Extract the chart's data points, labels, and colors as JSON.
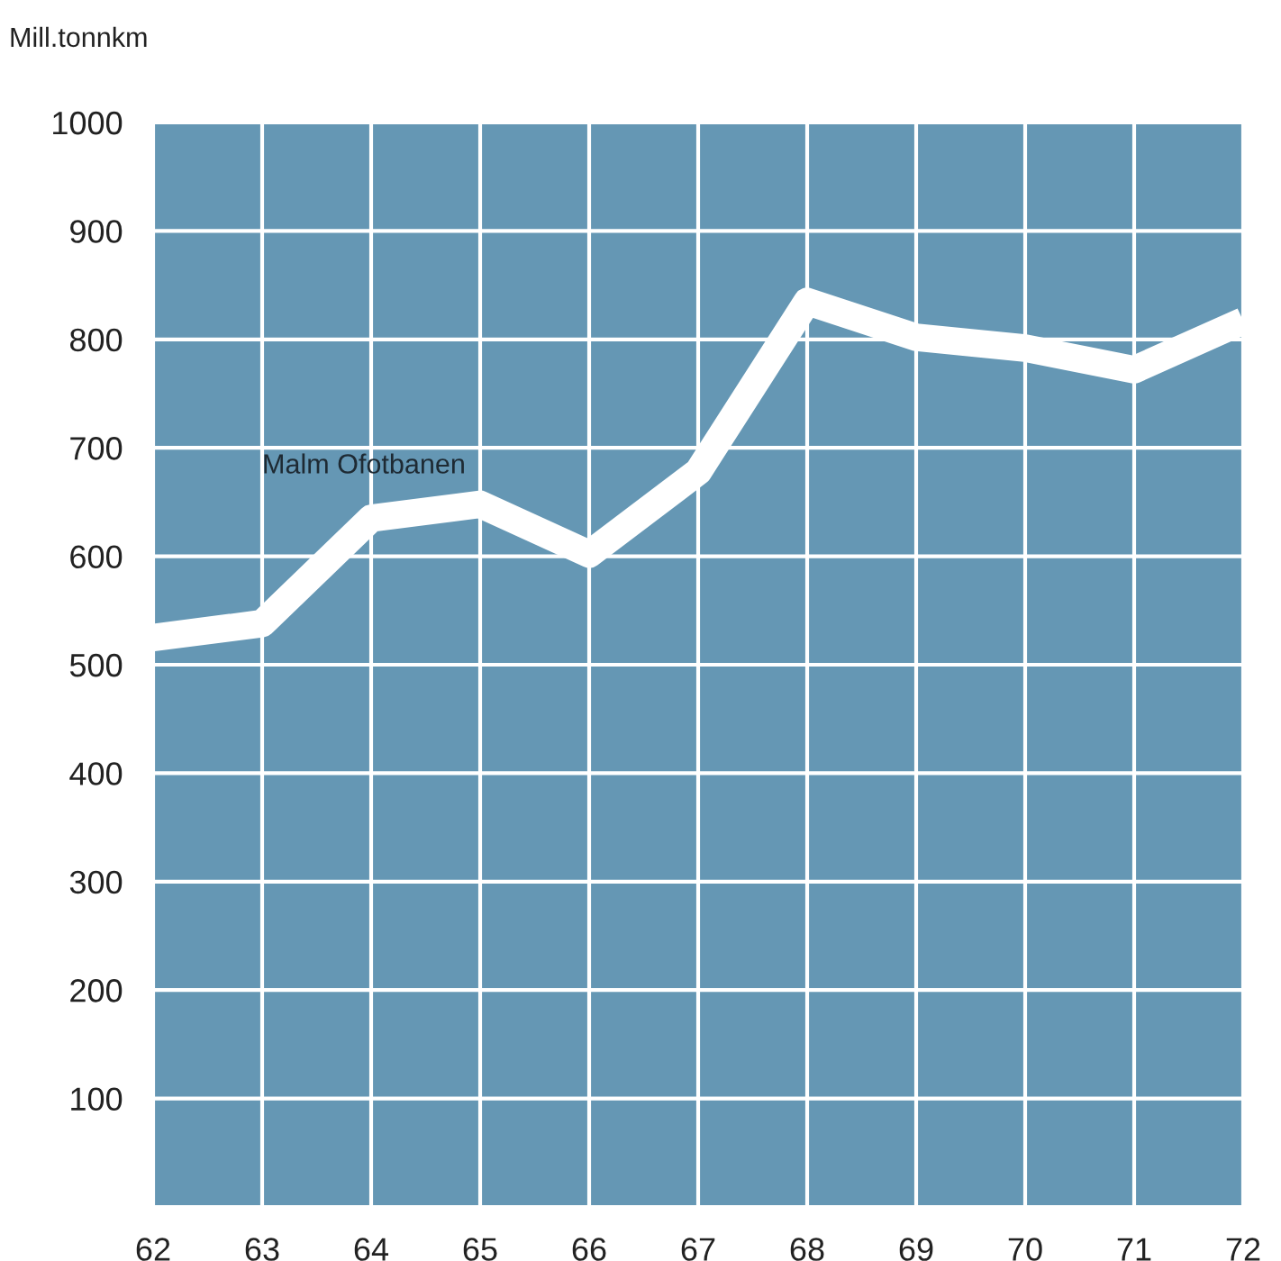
{
  "chart_data": {
    "type": "line",
    "ylabel": "Mill.tonnkm",
    "x": [
      62,
      63,
      64,
      65,
      66,
      67,
      68,
      69,
      70,
      71,
      72
    ],
    "series": [
      {
        "name": "Malm Ofotbanen",
        "color": "#ffffff",
        "values": [
          525,
          538,
          635,
          648,
          602,
          678,
          835,
          802,
          792,
          772,
          817
        ]
      }
    ],
    "xlim": [
      62,
      72
    ],
    "ylim": [
      0,
      1000
    ],
    "xticks": [
      62,
      63,
      64,
      65,
      66,
      67,
      68,
      69,
      70,
      71,
      72
    ],
    "yticks": [
      {
        "value": 0,
        "label": null
      },
      100,
      200,
      300,
      400,
      500,
      600,
      700,
      800,
      900,
      1000
    ],
    "grid": true,
    "legend": false,
    "line_style": "solid"
  }
}
